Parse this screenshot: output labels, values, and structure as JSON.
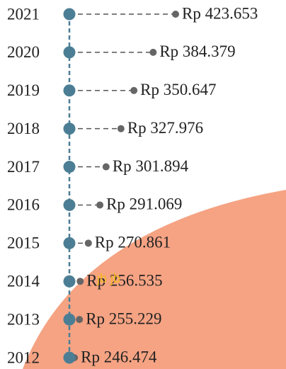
{
  "chart_data": {
    "type": "lollipop",
    "categories": [
      "2021",
      "2020",
      "2019",
      "2018",
      "2017",
      "2016",
      "2015",
      "2014",
      "2013",
      "2012"
    ],
    "values": [
      423653,
      384379,
      350647,
      327976,
      301894,
      291069,
      270861,
      256535,
      255229,
      246474
    ],
    "value_labels": [
      "Rp 423.653",
      "Rp 384.379",
      "Rp 350.647",
      "Rp 327.976",
      "Rp 301.894",
      "Rp 291.069",
      "Rp 270.861",
      "Rp 256.535",
      "Rp 255.229",
      "Rp 246.474"
    ],
    "color": "#4b7e95",
    "end_color": "#666666",
    "annotation": "jb jb"
  }
}
